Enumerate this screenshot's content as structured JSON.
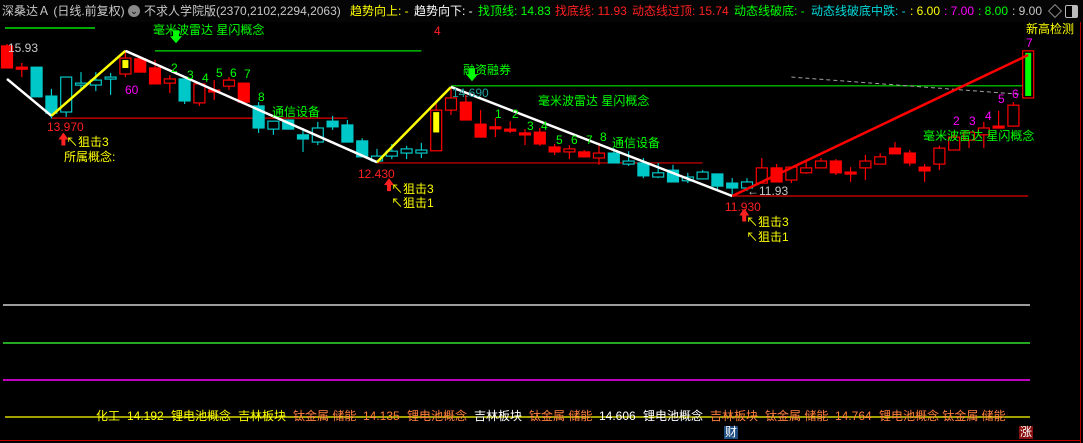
{
  "header": {
    "stock_title": "深桑达Ａ (日线.前复权)",
    "indicator_name": "不求人学院版(2370,2102,2294,2063)",
    "trend_up": "趋势向上: -",
    "trend_down": "趋势向下: -",
    "top_line": "找顶线: 14.83",
    "bottom_line": "找底线: 11.93",
    "dyn_over_top": "动态线过顶: 15.74",
    "dyn_break_bottom": "动态线破底: -",
    "dyn_break_mid": "动态线破底中跌: -",
    "v6": ": 6.00",
    "v7": ": 7.00",
    "v8": ": 8.00",
    "v9": ": 9.00",
    "icons": [
      "chevron-down-circle-icon",
      "diamond-icon",
      "window-toggle-icon"
    ]
  },
  "colors": {
    "up": "#ff0000",
    "down": "#00c8c8",
    "zigzag_down": "#ffffff",
    "zigzag_up": "#ffff00",
    "zigzag_last": "#ff0000",
    "label_green": "#00ff00",
    "label_yellow": "#ffff00",
    "label_magenta": "#ff00ff",
    "label_orange": "#ff7f3f"
  },
  "chart_data": {
    "type": "candlestick",
    "title": "",
    "price_labels": [
      "15.93",
      "13.970",
      "14.690",
      "12.430",
      "11.93",
      "11.930"
    ],
    "candles": [
      {
        "o": 15.3,
        "h": 15.93,
        "l": 15.3,
        "c": 15.88,
        "color": "up",
        "hollow": false
      },
      {
        "o": 15.32,
        "h": 15.43,
        "l": 15.06,
        "c": 15.32,
        "color": "up",
        "hollow": false
      },
      {
        "o": 15.32,
        "h": 15.32,
        "l": 14.54,
        "c": 14.54,
        "color": "down",
        "hollow": false
      },
      {
        "o": 14.56,
        "h": 14.75,
        "l": 13.97,
        "c": 14.11,
        "color": "down",
        "hollow": false
      },
      {
        "o": 15.06,
        "h": 15.06,
        "l": 14.01,
        "c": 14.14,
        "color": "down",
        "hollow": true
      },
      {
        "o": 14.9,
        "h": 15.19,
        "l": 14.69,
        "c": 14.9,
        "color": "down",
        "hollow": true
      },
      {
        "o": 14.98,
        "h": 15.19,
        "l": 14.69,
        "c": 14.85,
        "color": "down",
        "hollow": true
      },
      {
        "o": 15.06,
        "h": 15.17,
        "l": 14.59,
        "c": 15.01,
        "color": "down",
        "hollow": true
      },
      {
        "o": 15.14,
        "h": 15.75,
        "l": 15.06,
        "c": 15.56,
        "color": "up",
        "hollow": true,
        "inner": "#ffff00"
      },
      {
        "o": 15.19,
        "h": 15.54,
        "l": 15.19,
        "c": 15.54,
        "color": "up",
        "hollow": false
      },
      {
        "o": 14.88,
        "h": 15.51,
        "l": 14.88,
        "c": 15.3,
        "color": "up",
        "hollow": false
      },
      {
        "o": 14.9,
        "h": 15.11,
        "l": 14.64,
        "c": 15.01,
        "color": "up",
        "hollow": true
      },
      {
        "o": 15.01,
        "h": 15.01,
        "l": 14.35,
        "c": 14.43,
        "color": "down",
        "hollow": false
      },
      {
        "o": 14.38,
        "h": 14.88,
        "l": 14.3,
        "c": 14.88,
        "color": "up",
        "hollow": true
      },
      {
        "o": 14.67,
        "h": 14.98,
        "l": 14.46,
        "c": 14.72,
        "color": "up",
        "hollow": false
      },
      {
        "o": 14.82,
        "h": 15.06,
        "l": 14.72,
        "c": 14.98,
        "color": "up",
        "hollow": true
      },
      {
        "o": 14.4,
        "h": 14.9,
        "l": 14.4,
        "c": 14.9,
        "color": "up",
        "hollow": false
      },
      {
        "o": 14.3,
        "h": 14.4,
        "l": 13.59,
        "c": 13.72,
        "color": "down",
        "hollow": false
      },
      {
        "o": 13.9,
        "h": 13.9,
        "l": 13.54,
        "c": 13.69,
        "color": "down",
        "hollow": true
      },
      {
        "o": 13.93,
        "h": 13.93,
        "l": 13.69,
        "c": 13.69,
        "color": "down",
        "hollow": false
      },
      {
        "o": 13.54,
        "h": 13.72,
        "l": 13.09,
        "c": 13.43,
        "color": "down",
        "hollow": false
      },
      {
        "o": 13.72,
        "h": 13.88,
        "l": 13.27,
        "c": 13.35,
        "color": "down",
        "hollow": true
      },
      {
        "o": 13.9,
        "h": 14.04,
        "l": 13.67,
        "c": 13.75,
        "color": "down",
        "hollow": false
      },
      {
        "o": 13.8,
        "h": 13.93,
        "l": 13.35,
        "c": 13.35,
        "color": "down",
        "hollow": false
      },
      {
        "o": 13.38,
        "h": 13.45,
        "l": 12.96,
        "c": 12.96,
        "color": "down",
        "hollow": false
      },
      {
        "o": 12.98,
        "h": 13.17,
        "l": 12.8,
        "c": 12.85,
        "color": "down",
        "hollow": true
      },
      {
        "o": 13.11,
        "h": 13.3,
        "l": 12.9,
        "c": 12.98,
        "color": "down",
        "hollow": true
      },
      {
        "o": 13.17,
        "h": 13.25,
        "l": 12.9,
        "c": 13.06,
        "color": "down",
        "hollow": true
      },
      {
        "o": 13.14,
        "h": 13.33,
        "l": 12.93,
        "c": 13.06,
        "color": "down",
        "hollow": true
      },
      {
        "o": 13.12,
        "h": 14.4,
        "l": 13.12,
        "c": 14.19,
        "color": "up",
        "hollow": true,
        "inner": "#ffff00"
      },
      {
        "o": 14.19,
        "h": 14.8,
        "l": 14.06,
        "c": 14.51,
        "color": "up",
        "hollow": true
      },
      {
        "o": 13.93,
        "h": 14.59,
        "l": 13.93,
        "c": 14.4,
        "color": "up",
        "hollow": false
      },
      {
        "o": 13.48,
        "h": 14.19,
        "l": 13.48,
        "c": 13.82,
        "color": "up",
        "hollow": false
      },
      {
        "o": 13.75,
        "h": 13.98,
        "l": 13.48,
        "c": 13.75,
        "color": "up",
        "hollow": false
      },
      {
        "o": 13.69,
        "h": 13.9,
        "l": 13.59,
        "c": 13.69,
        "color": "up",
        "hollow": false
      },
      {
        "o": 13.54,
        "h": 13.69,
        "l": 13.27,
        "c": 13.59,
        "color": "up",
        "hollow": false
      },
      {
        "o": 13.3,
        "h": 13.72,
        "l": 13.25,
        "c": 13.61,
        "color": "up",
        "hollow": false
      },
      {
        "o": 13.09,
        "h": 13.3,
        "l": 13.01,
        "c": 13.22,
        "color": "up",
        "hollow": false
      },
      {
        "o": 13.09,
        "h": 13.27,
        "l": 12.9,
        "c": 13.17,
        "color": "up",
        "hollow": true
      },
      {
        "o": 12.96,
        "h": 13.14,
        "l": 12.96,
        "c": 13.09,
        "color": "up",
        "hollow": false
      },
      {
        "o": 12.93,
        "h": 13.33,
        "l": 12.75,
        "c": 13.06,
        "color": "up",
        "hollow": true
      },
      {
        "o": 13.06,
        "h": 13.19,
        "l": 12.8,
        "c": 12.8,
        "color": "down",
        "hollow": false
      },
      {
        "o": 12.85,
        "h": 13.11,
        "l": 12.72,
        "c": 12.77,
        "color": "down",
        "hollow": true
      },
      {
        "o": 12.8,
        "h": 12.93,
        "l": 12.4,
        "c": 12.46,
        "color": "down",
        "hollow": false
      },
      {
        "o": 12.54,
        "h": 12.8,
        "l": 12.4,
        "c": 12.43,
        "color": "down",
        "hollow": true
      },
      {
        "o": 12.61,
        "h": 12.75,
        "l": 12.3,
        "c": 12.3,
        "color": "down",
        "hollow": false
      },
      {
        "o": 12.43,
        "h": 12.54,
        "l": 12.27,
        "c": 12.33,
        "color": "down",
        "hollow": true
      },
      {
        "o": 12.56,
        "h": 12.61,
        "l": 12.38,
        "c": 12.38,
        "color": "down",
        "hollow": true
      },
      {
        "o": 12.51,
        "h": 12.51,
        "l": 12.09,
        "c": 12.19,
        "color": "down",
        "hollow": false
      },
      {
        "o": 12.27,
        "h": 12.4,
        "l": 11.93,
        "c": 12.14,
        "color": "down",
        "hollow": false
      },
      {
        "o": 12.3,
        "h": 12.4,
        "l": 12.06,
        "c": 12.14,
        "color": "down",
        "hollow": true
      },
      {
        "o": 12.27,
        "h": 12.93,
        "l": 12.27,
        "c": 12.67,
        "color": "up",
        "hollow": true
      },
      {
        "o": 12.3,
        "h": 12.77,
        "l": 12.3,
        "c": 12.67,
        "color": "up",
        "hollow": false
      },
      {
        "o": 12.35,
        "h": 12.69,
        "l": 12.27,
        "c": 12.69,
        "color": "up",
        "hollow": true
      },
      {
        "o": 12.54,
        "h": 12.88,
        "l": 12.51,
        "c": 12.67,
        "color": "up",
        "hollow": true
      },
      {
        "o": 12.67,
        "h": 12.93,
        "l": 12.67,
        "c": 12.85,
        "color": "up",
        "hollow": true
      },
      {
        "o": 12.54,
        "h": 12.9,
        "l": 12.48,
        "c": 12.85,
        "color": "up",
        "hollow": false
      },
      {
        "o": 12.56,
        "h": 12.69,
        "l": 12.3,
        "c": 12.56,
        "color": "up",
        "hollow": false
      },
      {
        "o": 12.67,
        "h": 13.01,
        "l": 12.35,
        "c": 12.85,
        "color": "up",
        "hollow": true
      },
      {
        "o": 12.77,
        "h": 13.06,
        "l": 12.77,
        "c": 12.96,
        "color": "up",
        "hollow": true
      },
      {
        "o": 13.04,
        "h": 13.35,
        "l": 13.04,
        "c": 13.19,
        "color": "up",
        "hollow": false
      },
      {
        "o": 12.8,
        "h": 13.14,
        "l": 12.72,
        "c": 13.06,
        "color": "up",
        "hollow": false
      },
      {
        "o": 12.59,
        "h": 12.77,
        "l": 12.3,
        "c": 12.69,
        "color": "up",
        "hollow": false
      },
      {
        "o": 12.77,
        "h": 13.25,
        "l": 12.61,
        "c": 13.19,
        "color": "up",
        "hollow": true
      },
      {
        "o": 13.14,
        "h": 13.61,
        "l": 13.14,
        "c": 13.48,
        "color": "up",
        "hollow": true
      },
      {
        "o": 13.4,
        "h": 13.61,
        "l": 13.19,
        "c": 13.61,
        "color": "up",
        "hollow": true
      },
      {
        "o": 13.54,
        "h": 13.88,
        "l": 13.19,
        "c": 13.72,
        "color": "up",
        "hollow": true
      },
      {
        "o": 13.72,
        "h": 14.17,
        "l": 13.72,
        "c": 13.77,
        "color": "up",
        "hollow": false
      },
      {
        "o": 13.77,
        "h": 14.4,
        "l": 13.77,
        "c": 14.32,
        "color": "up",
        "hollow": true
      },
      {
        "o": 14.51,
        "h": 15.75,
        "l": 14.51,
        "c": 15.75,
        "color": "up",
        "hollow": true,
        "inner": "#00ff00"
      }
    ],
    "zigzag": [
      {
        "i": 0,
        "p": 15.01
      },
      {
        "i": 3,
        "p": 14.04
      },
      {
        "i": 8,
        "p": 15.75
      },
      {
        "i": 25,
        "p": 12.82
      },
      {
        "i": 30,
        "p": 14.8
      },
      {
        "i": 49,
        "p": 11.93
      },
      {
        "i": 69,
        "p": 15.64
      }
    ],
    "hlines": [
      {
        "p": 15.75,
        "from": 10,
        "to": 28,
        "color": "#00e000"
      },
      {
        "p": 13.98,
        "from": 3,
        "to": 23,
        "color": "#e00000"
      },
      {
        "p": 14.83,
        "from": 30,
        "to": 69,
        "color": "#00e000"
      },
      {
        "p": 12.8,
        "from": 25,
        "to": 47,
        "color": "#e00000"
      },
      {
        "p": 11.93,
        "from": 49,
        "to": 69,
        "color": "#e00000"
      }
    ],
    "dashed_line": {
      "from": {
        "i": 53,
        "p": 15.06
      },
      "to": {
        "i": 69,
        "p": 14.59
      },
      "color": "#a0a0a0"
    },
    "lower_pane_lines": [
      {
        "color": "#d0d0d0"
      },
      {
        "color": "#30e030"
      },
      {
        "color": "#ff00ff"
      }
    ]
  },
  "annotations": [
    {
      "text": "15.93",
      "color": "#c8c8c8"
    },
    {
      "text": "毫米波雷达 星闪概念",
      "color": "#00ff00"
    },
    {
      "text": "4",
      "color": "#ff2020"
    },
    {
      "text": "2",
      "color": "#00ff00"
    },
    {
      "text": "3",
      "color": "#00ff00"
    },
    {
      "text": "4",
      "color": "#00ff00"
    },
    {
      "text": "5",
      "color": "#00ff00"
    },
    {
      "text": "6",
      "color": "#00ff00"
    },
    {
      "text": "7",
      "color": "#00ff00"
    },
    {
      "text": "8",
      "color": "#00ff00"
    },
    {
      "text": "60",
      "color": "#ff00ff"
    },
    {
      "text": "通信设备",
      "color": "#00ff00"
    },
    {
      "text": "13.970",
      "color": "#ff2020"
    },
    {
      "text": "↖狙击3",
      "color": "#ffff00"
    },
    {
      "text": "所属概念:",
      "color": "#ffff00"
    },
    {
      "text": "融资融券",
      "color": "#00ff00"
    },
    {
      "text": "14.690",
      "color": "#20a0a0"
    },
    {
      "text": "毫米波雷达 星闪概念",
      "color": "#00ff00"
    },
    {
      "text": "1",
      "color": "#00ff00"
    },
    {
      "text": "2",
      "color": "#00ff00"
    },
    {
      "text": "3",
      "color": "#00ff00"
    },
    {
      "text": "4",
      "color": "#00ff00"
    },
    {
      "text": "5",
      "color": "#00ff00"
    },
    {
      "text": "6",
      "color": "#00ff00"
    },
    {
      "text": "7",
      "color": "#00ff00"
    },
    {
      "text": "8",
      "color": "#00ff00"
    },
    {
      "text": "通信设备",
      "color": "#00ff00"
    },
    {
      "text": "12.430",
      "color": "#ff2020"
    },
    {
      "text": "↖狙击3",
      "color": "#ffff00"
    },
    {
      "text": "↖狙击1",
      "color": "#ffff00"
    },
    {
      "text": "←11.93",
      "color": "#c8c8c8"
    },
    {
      "text": "11.930",
      "color": "#ff2020"
    },
    {
      "text": "↖狙击3",
      "color": "#ffff00"
    },
    {
      "text": "↖狙击1",
      "color": "#ffff00"
    },
    {
      "text": "2",
      "color": "#ff00ff"
    },
    {
      "text": "3",
      "color": "#ff00ff"
    },
    {
      "text": "4",
      "color": "#ff00ff"
    },
    {
      "text": "5",
      "color": "#ff00ff"
    },
    {
      "text": "6",
      "color": "#ff00ff"
    },
    {
      "text": "7",
      "color": "#ff00ff"
    },
    {
      "text": "毫米波雷达 星闪概念",
      "color": "#00ff00"
    },
    {
      "text": "新高检测",
      "color": "#ffff00"
    }
  ],
  "bottom_labels": [
    {
      "text": "化工",
      "color": "#ffff00"
    },
    {
      "text": "14.192",
      "color": "#ffff00"
    },
    {
      "text": "锂电池概念",
      "color": "#ffff00"
    },
    {
      "text": "吉林板块",
      "color": "#ffff00"
    },
    {
      "text": "钛金属 储能",
      "color": "#ff7f3f"
    },
    {
      "text": "14.135",
      "color": "#ff7f3f"
    },
    {
      "text": "锂电池概念",
      "color": "#ff7f3f"
    },
    {
      "text": "吉林板块",
      "color": "#ffffff"
    },
    {
      "text": "钛金属 储能",
      "color": "#ff7f3f"
    },
    {
      "text": "14.606",
      "color": "#ffffff"
    },
    {
      "text": "锂电池概念",
      "color": "#ffffff"
    },
    {
      "text": "吉林板块",
      "color": "#ff7f3f"
    },
    {
      "text": "钛金属 储能",
      "color": "#ff7f3f"
    },
    {
      "text": "14.764",
      "color": "#ff7f3f"
    },
    {
      "text": "锂电池概念 钛金属 储能",
      "color": "#ff7f3f"
    }
  ],
  "badges": [
    {
      "text": "财",
      "bg": "#1f4d80"
    },
    {
      "text": "涨",
      "bg": "#8a1010"
    }
  ]
}
